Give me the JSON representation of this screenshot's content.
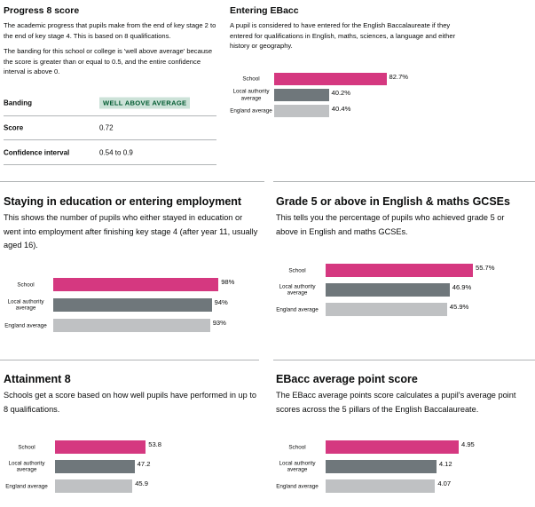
{
  "colors": {
    "school": "#d53880",
    "local_authority": "#6f777b",
    "england": "#bfc1c3",
    "divider": "#b1b4b6",
    "well_above_bg": "#cce2d8",
    "well_above_text": "#005a30"
  },
  "progress8": {
    "title": "Progress 8 score",
    "description": "The academic progress that pupils make from the end of key stage 2 to the end of key stage 4. This is based on 8 qualifications.",
    "banding_note": "The banding for this school or college is 'well above average' because the score is greater than or equal to 0.5, and the entire confidence interval is above 0.",
    "rows": [
      {
        "key": "Banding",
        "value": "WELL ABOVE AVERAGE"
      },
      {
        "key": "Score",
        "value": "0.72"
      },
      {
        "key": "Confidence interval",
        "value": "0.54 to 0.9"
      }
    ]
  },
  "charts": [
    {
      "title": "Entering EBacc",
      "description": "A pupil is considered to have entered for the English Baccalaureate if they entered for qualifications in English, maths, sciences, a language and either history or geography.",
      "bars": [
        {
          "label": "School",
          "value": 82.7,
          "display": "82.7%"
        },
        {
          "label": "Local authority average",
          "value": 40.2,
          "display": "40.2%"
        },
        {
          "label": "England average",
          "value": 40.4,
          "display": "40.4%"
        }
      ]
    },
    {
      "title": "Staying in education or entering employment",
      "description": "This shows the number of pupils who either stayed in education or went into employment after finishing key stage 4 (after year 11, usually aged 16).",
      "bars": [
        {
          "label": "School",
          "value": 98,
          "display": "98%"
        },
        {
          "label": "Local authority average",
          "value": 94,
          "display": "94%"
        },
        {
          "label": "England average",
          "value": 93,
          "display": "93%"
        }
      ]
    },
    {
      "title": "Grade 5 or above in English & maths GCSEs",
      "description": "This tells you the percentage of pupils who achieved grade 5 or above in English and maths GCSEs.",
      "bars": [
        {
          "label": "School",
          "value": 55.7,
          "display": "55.7%"
        },
        {
          "label": "Local authority average",
          "value": 46.9,
          "display": "46.9%"
        },
        {
          "label": "England average",
          "value": 45.9,
          "display": "45.9%"
        }
      ]
    },
    {
      "title": "Attainment 8",
      "description": "Schools get a score based on how well pupils have performed in up to 8 qualifications.",
      "bars": [
        {
          "label": "School",
          "value": 53.8,
          "display": "53.8"
        },
        {
          "label": "Local authority average",
          "value": 47.2,
          "display": "47.2"
        },
        {
          "label": "England average",
          "value": 45.9,
          "display": "45.9"
        }
      ]
    },
    {
      "title": "EBacc average point score",
      "description": "The EBacc average points score calculates a pupil's average point scores across the 5 pillars of the English Baccalaureate.",
      "bars": [
        {
          "label": "School",
          "value": 4.95,
          "display": "4.95"
        },
        {
          "label": "Local authority average",
          "value": 4.12,
          "display": "4.12"
        },
        {
          "label": "England average",
          "value": 4.07,
          "display": "4.07"
        }
      ]
    }
  ]
}
